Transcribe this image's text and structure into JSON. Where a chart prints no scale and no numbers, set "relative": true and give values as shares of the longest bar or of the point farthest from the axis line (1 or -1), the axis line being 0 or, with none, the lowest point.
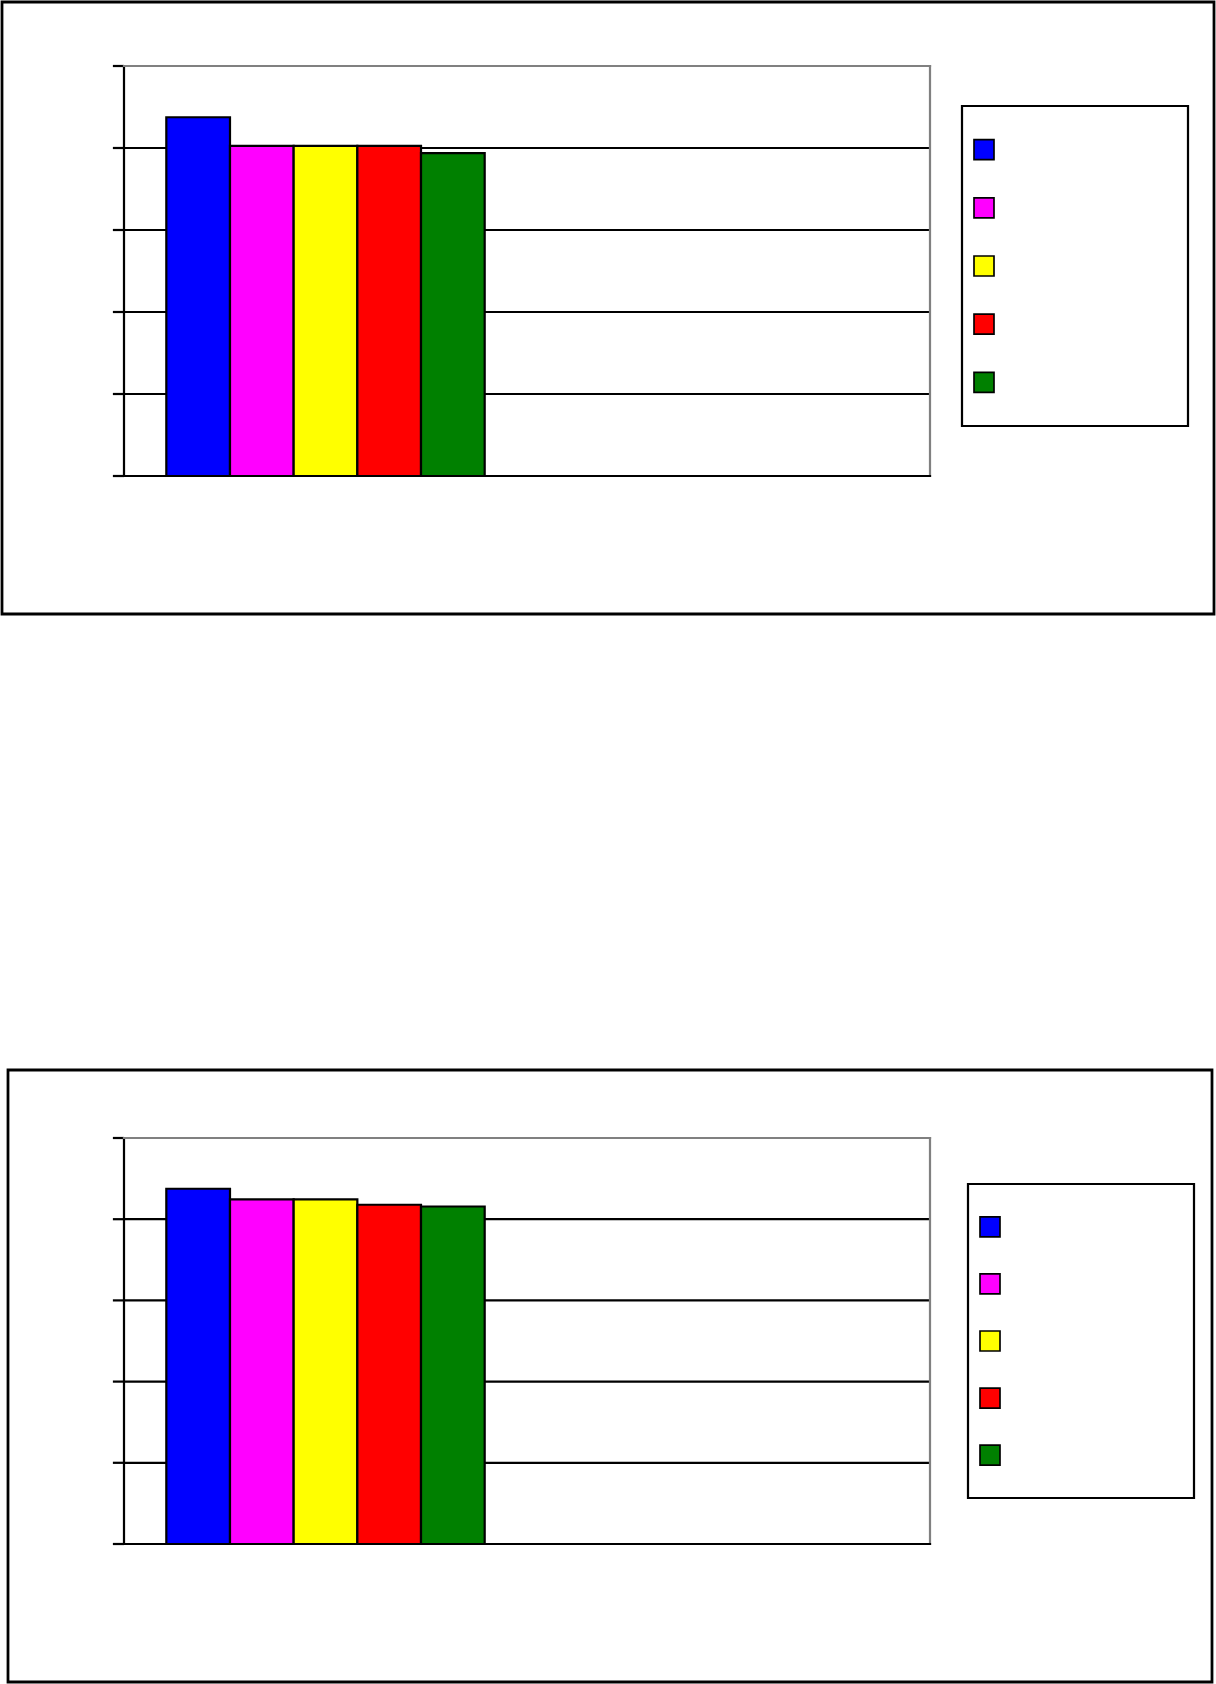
{
  "chart_data": [
    {
      "type": "bar",
      "relative": true,
      "categories": [
        null
      ],
      "grid": "y",
      "series": [
        {
          "color": "#0000ff",
          "values": [
            1
          ]
        },
        {
          "color": "#ff00ff",
          "values": [
            0.92
          ]
        },
        {
          "color": "#ffff00",
          "values": [
            0.92
          ]
        },
        {
          "color": "#ff0000",
          "values": [
            0.92
          ]
        },
        {
          "color": "#008000",
          "values": [
            0.9
          ]
        }
      ]
    },
    {
      "type": "bar",
      "relative": true,
      "categories": [
        null
      ],
      "grid": "y",
      "series": [
        {
          "color": "#0000ff",
          "values": [
            1
          ]
        },
        {
          "color": "#ff00ff",
          "values": [
            0.97
          ]
        },
        {
          "color": "#ffff00",
          "values": [
            0.97
          ]
        },
        {
          "color": "#ff0000",
          "values": [
            0.955
          ]
        },
        {
          "color": "#008000",
          "values": [
            0.95
          ]
        }
      ]
    }
  ]
}
